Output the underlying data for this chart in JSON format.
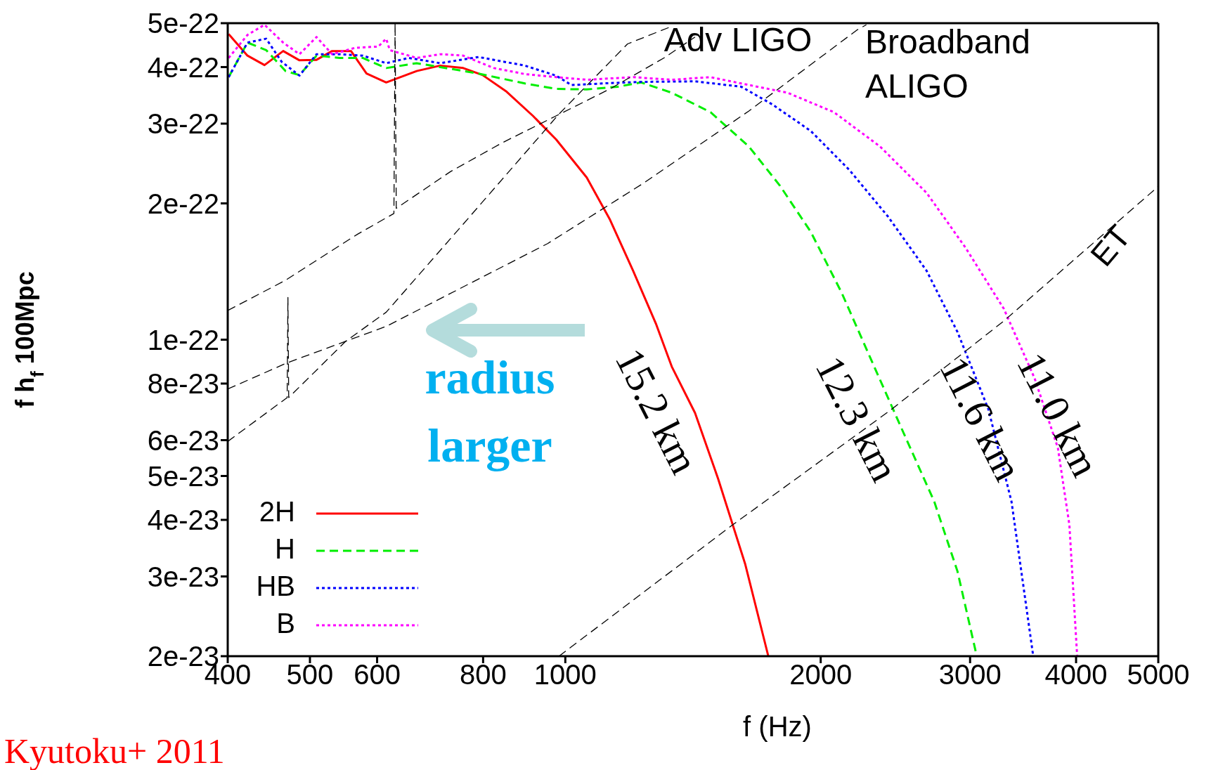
{
  "chart_data": {
    "type": "line",
    "xlabel": "f (Hz)",
    "ylabel": "f h$_{f}$ 100Mpc",
    "log": "xy",
    "xlim": [
      400,
      5000
    ],
    "xticks": [
      400,
      500,
      600,
      800,
      1000,
      2000,
      3000,
      4000,
      5000
    ],
    "ylim": [
      2e-23,
      5e-22
    ],
    "yticks": [
      2e-23,
      3e-23,
      4e-23,
      5e-23,
      6e-23,
      8e-23,
      1e-22,
      2e-22,
      3e-22,
      4e-22,
      5e-22
    ],
    "legend": "bottom left",
    "marker": "none",
    "series": [
      {
        "name": "2H",
        "color": "#ff0000",
        "line_style": "solid",
        "x": [
          401,
          422,
          442,
          465,
          486,
          509,
          531,
          559,
          583,
          615,
          668,
          712,
          758,
          799,
          851,
          916,
          975,
          1060,
          1129,
          1202,
          1280,
          1335,
          1422,
          1514,
          1629,
          1735
        ],
        "values": [
          4.73e-22,
          4.24e-22,
          4.04e-22,
          4.34e-22,
          4.14e-22,
          4.15e-22,
          4.34e-22,
          4.34e-22,
          3.87e-22,
          3.7e-22,
          3.92e-22,
          4.03e-22,
          3.98e-22,
          3.84e-22,
          3.54e-22,
          3.12e-22,
          2.77e-22,
          2.28e-22,
          1.84e-22,
          1.42e-22,
          1.08e-22,
          8.72e-23,
          6.89e-23,
          4.93e-23,
          3.2e-23,
          2e-23
        ]
      },
      {
        "name": "H",
        "color": "#00ee00",
        "line_style": "dashed",
        "x": [
          401,
          422,
          444,
          468,
          486,
          509,
          542,
          577,
          615,
          668,
          712,
          790,
          896,
          975,
          1060,
          1153,
          1228,
          1335,
          1483,
          1646,
          1790,
          1947,
          2117,
          2302,
          2503,
          2722,
          2899,
          3055
        ],
        "values": [
          3.8e-22,
          4.53e-22,
          4.36e-22,
          3.92e-22,
          3.84e-22,
          4.24e-22,
          4.19e-22,
          4.19e-22,
          3.98e-22,
          4.08e-22,
          4e-22,
          3.87e-22,
          3.68e-22,
          3.58e-22,
          3.57e-22,
          3.62e-22,
          3.7e-22,
          3.51e-22,
          3.18e-22,
          2.67e-22,
          2.19e-22,
          1.73e-22,
          1.27e-22,
          8.89e-23,
          6.24e-23,
          4.39e-23,
          3.08e-23,
          2e-23
        ]
      },
      {
        "name": "HB",
        "color": "#0000ff",
        "line_style": "dotted",
        "x": [
          401,
          422,
          444,
          463,
          486,
          509,
          542,
          577,
          615,
          654,
          712,
          790,
          896,
          975,
          1017,
          1105,
          1228,
          1422,
          1612,
          1753,
          1947,
          2162,
          2401,
          2666,
          2899,
          3152,
          3357,
          3561
        ],
        "values": [
          3.8e-22,
          4.53e-22,
          4.62e-22,
          4.11e-22,
          3.83e-22,
          4.27e-22,
          4.27e-22,
          4.24e-22,
          4.08e-22,
          4.19e-22,
          4.08e-22,
          4.21e-22,
          4.03e-22,
          3.83e-22,
          3.65e-22,
          3.68e-22,
          3.71e-22,
          3.72e-22,
          3.62e-22,
          3.31e-22,
          2.89e-22,
          2.37e-22,
          1.87e-22,
          1.42e-22,
          1.04e-22,
          7.03e-23,
          4.39e-23,
          2e-23
        ]
      },
      {
        "name": "B",
        "color": "#ff00ff",
        "line_style": "dotted",
        "x": [
          401,
          422,
          442,
          465,
          486,
          509,
          531,
          565,
          602,
          615,
          621,
          668,
          712,
          758,
          824,
          896,
          975,
          1060,
          1202,
          1335,
          1483,
          1612,
          1828,
          2073,
          2350,
          2666,
          2961,
          3288,
          3574,
          3807,
          3928,
          4012
        ],
        "values": [
          4.19e-22,
          4.71e-22,
          4.96e-22,
          4.53e-22,
          4.27e-22,
          4.66e-22,
          4.27e-22,
          4.41e-22,
          4.44e-22,
          4.62e-22,
          4.36e-22,
          4.19e-22,
          4.27e-22,
          4.24e-22,
          3.98e-22,
          3.86e-22,
          3.8e-22,
          3.75e-22,
          3.8e-22,
          3.75e-22,
          3.8e-22,
          3.68e-22,
          3.51e-22,
          3.18e-22,
          2.67e-22,
          2.11e-22,
          1.6e-22,
          1.17e-22,
          8.22e-23,
          5.77e-23,
          3.9e-23,
          2e-23
        ]
      },
      {
        "color": "#000000",
        "line_style": "dashed",
        "x": [
          400,
          467,
          569,
          628,
          630,
          632,
          732,
          842,
          975,
          1129,
          1307,
          1422
        ],
        "values": [
          1.16e-22,
          1.35e-22,
          1.71e-22,
          1.9e-22,
          5e-22,
          1.95e-22,
          2.35e-22,
          2.72e-22,
          3.12e-22,
          3.58e-22,
          4.19e-22,
          4.66e-22
        ]
      },
      {
        "color": "#000000",
        "line_style": "dashed",
        "x": [
          400,
          470,
          615,
          953,
          1238,
          1646,
          2207,
          2264
        ],
        "values": [
          7.78e-23,
          8.89e-23,
          1.07e-22,
          1.63e-22,
          2.22e-22,
          3.2e-22,
          4.83e-22,
          4.96e-22
        ]
      },
      {
        "color": "#000000",
        "line_style": "dashed",
        "x": [
          400,
          470,
          471,
          472,
          551,
          615,
          758,
          983,
          1184,
          1335
        ],
        "values": [
          5.96e-23,
          7.45e-23,
          1.24e-22,
          7.45e-23,
          9.92e-23,
          1.15e-22,
          1.8e-22,
          3.15e-22,
          4.5e-22,
          4.92e-22
        ]
      },
      {
        "color": "#000000",
        "line_style": "dashed",
        "x": [
          983,
          1575,
          2420,
          3288,
          5000
        ],
        "values": [
          2e-23,
          3.9e-23,
          7e-23,
          1.1e-22,
          2.18e-22
        ]
      }
    ],
    "annotations": [
      "Adv LIGO",
      "Broadband\nALIGO",
      "ET",
      "15.2 km",
      "12.3 km",
      "11.6 km",
      "11.0 km",
      "radius\nlarger",
      "Kyutoku+ 2011"
    ]
  }
}
